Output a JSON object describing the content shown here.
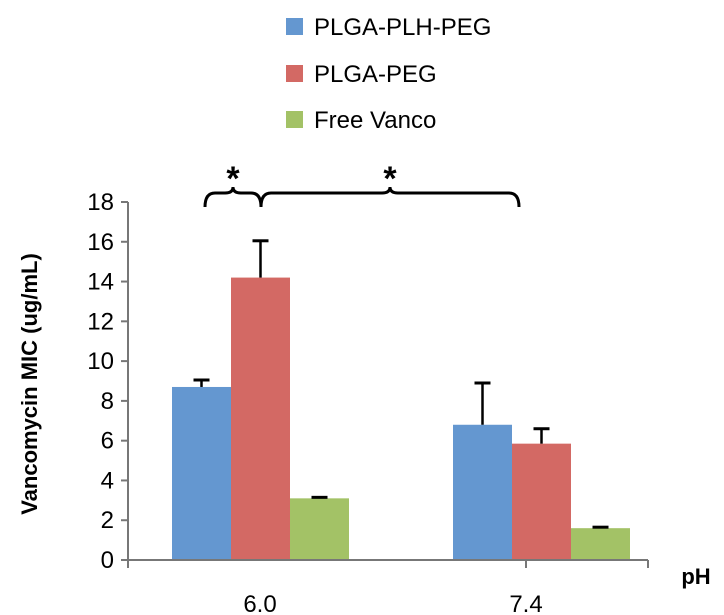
{
  "chart_data": {
    "type": "bar",
    "categories": [
      "6.0",
      "7.4"
    ],
    "series": [
      {
        "name": "PLGA-PLH-PEG",
        "color": "#6497d0",
        "values": [
          8.7,
          6.8
        ],
        "errors": [
          0.35,
          2.1
        ]
      },
      {
        "name": "PLGA-PEG",
        "color": "#d36964",
        "values": [
          14.2,
          5.85
        ],
        "errors": [
          1.85,
          0.75
        ]
      },
      {
        "name": "Free Vanco",
        "color": "#a3c266",
        "values": [
          3.1,
          1.6
        ],
        "errors": [
          0.05,
          0.05
        ]
      }
    ],
    "xlabel": "pH",
    "ylabel": "Vancomycin MIC (ug/mL)",
    "ylim": [
      0,
      18
    ],
    "yticks": [
      "0",
      "2",
      "4",
      "6",
      "8",
      "10",
      "12",
      "14",
      "16",
      "18"
    ],
    "grid": false,
    "legend_position": "top",
    "annotations": [
      {
        "text": "*",
        "from": "6.0 / PLGA-PLH-PEG",
        "to": "6.0 / PLGA-PEG"
      },
      {
        "text": "*",
        "from": "6.0 / PLGA-PEG",
        "to": "7.4 / PLGA-PLH-PEG"
      }
    ]
  }
}
